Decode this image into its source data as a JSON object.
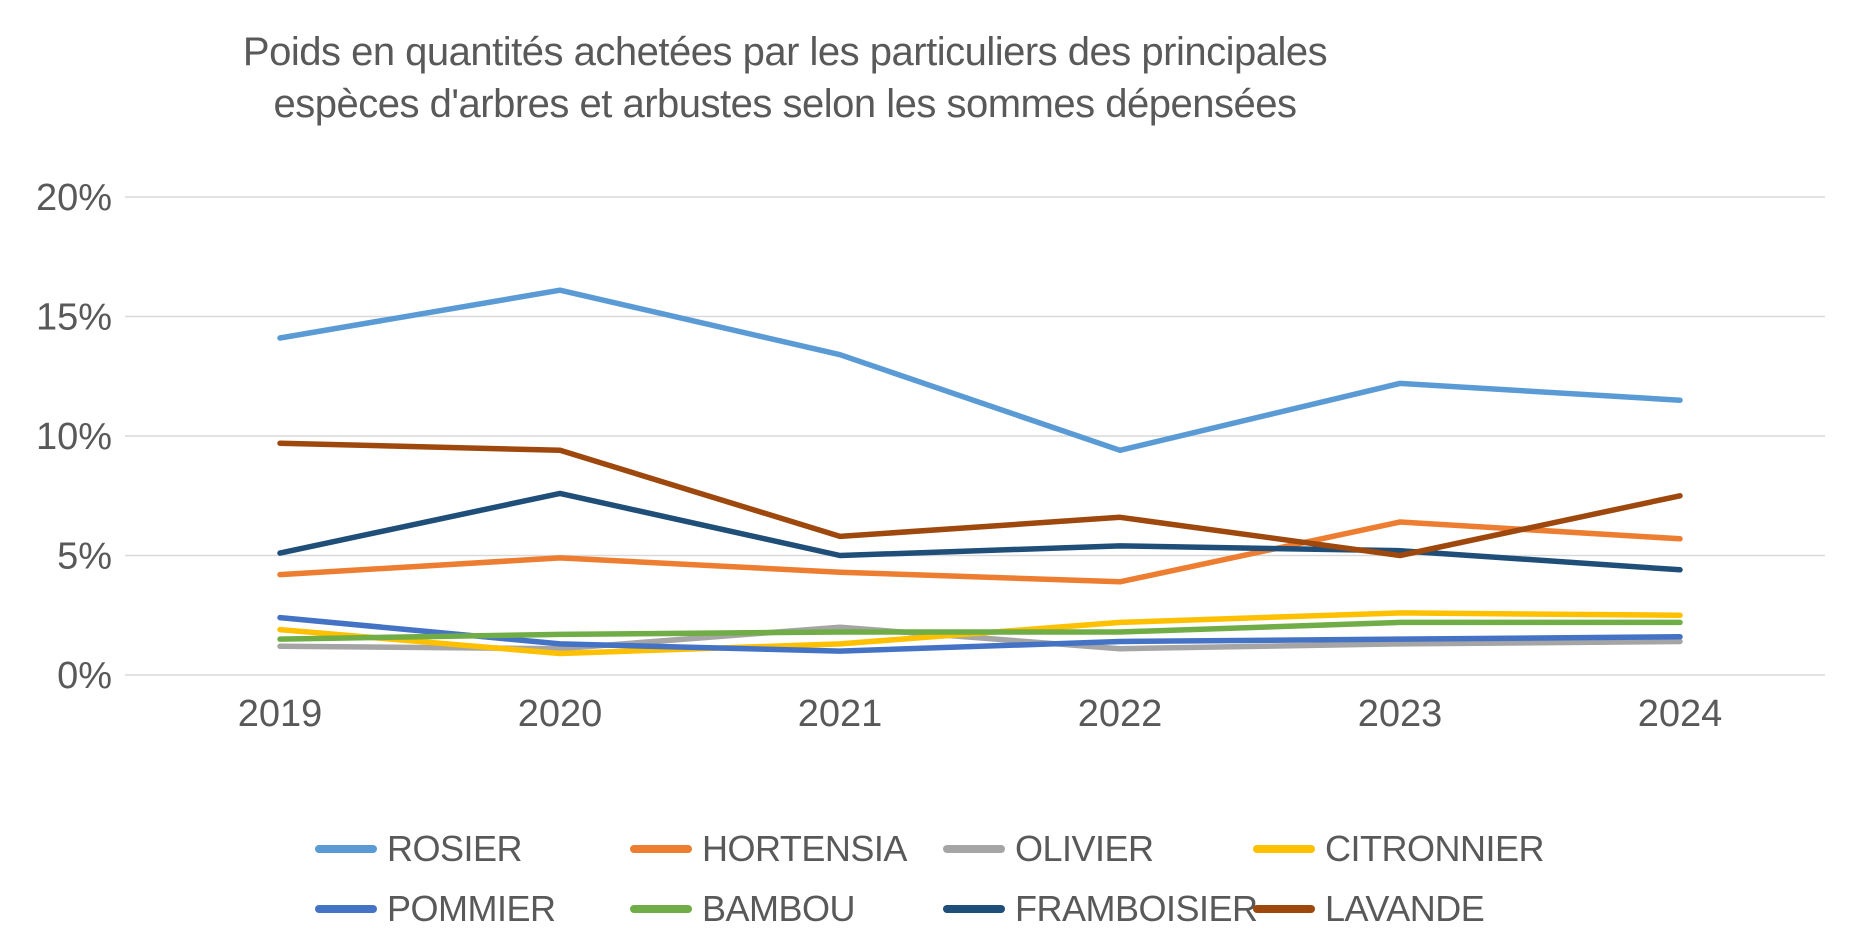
{
  "title": {
    "line1": "Poids en quantités achetées par les particuliers des principales",
    "line2": "espèces d'arbres et arbustes selon les sommes dépensées"
  },
  "colors": {
    "text": "#595959",
    "grid": "#D9D9D9",
    "background": "#FFFFFF"
  },
  "chart_data": {
    "type": "line",
    "title": "Poids en quantités achetées par les particuliers des principales espèces d'arbres et arbustes selon les sommes dépensées",
    "x_labels": [
      "2019",
      "2020",
      "2021",
      "2022",
      "2023",
      "2024"
    ],
    "y_ticks": [
      "0%",
      "5%",
      "10%",
      "15%",
      "20%"
    ],
    "ylim": [
      0,
      20
    ],
    "y_tick_step": 5,
    "grid": true,
    "legend_position": "bottom",
    "series": [
      {
        "name": "ROSIER",
        "color": "#5B9BD5",
        "values": [
          14.1,
          16.1,
          13.4,
          9.4,
          12.2,
          11.5
        ]
      },
      {
        "name": "HORTENSIA",
        "color": "#ED7D31",
        "values": [
          4.2,
          4.9,
          4.3,
          3.9,
          6.4,
          5.7
        ]
      },
      {
        "name": "OLIVIER",
        "color": "#A5A5A5",
        "values": [
          1.2,
          1.1,
          2.0,
          1.1,
          1.3,
          1.4
        ]
      },
      {
        "name": "CITRONNIER",
        "color": "#FFC000",
        "values": [
          1.9,
          0.9,
          1.3,
          2.2,
          2.6,
          2.5
        ]
      },
      {
        "name": "POMMIER",
        "color": "#4472C4",
        "values": [
          2.4,
          1.3,
          1.0,
          1.4,
          1.5,
          1.6
        ]
      },
      {
        "name": "BAMBOU",
        "color": "#70AD47",
        "values": [
          1.5,
          1.7,
          1.8,
          1.8,
          2.2,
          2.2
        ]
      },
      {
        "name": "FRAMBOISIER",
        "color": "#1F4E79",
        "values": [
          5.1,
          7.6,
          5.0,
          5.4,
          5.2,
          4.4
        ]
      },
      {
        "name": "LAVANDE",
        "color": "#9E480E",
        "values": [
          9.7,
          9.4,
          5.8,
          6.6,
          5.0,
          7.5
        ]
      }
    ]
  }
}
